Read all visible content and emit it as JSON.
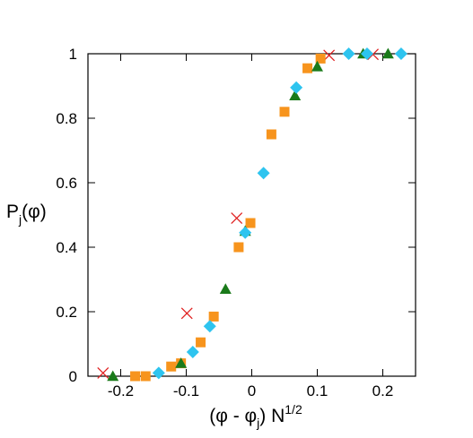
{
  "chart_data": {
    "type": "scatter",
    "xlabel": {
      "pre": "(φ - φ",
      "sub": "j",
      "mid": ") N",
      "sup": "1/2"
    },
    "ylabel": {
      "main": "P",
      "sub": "j",
      "rest": "(φ)"
    },
    "xlim": [
      -0.25,
      0.25
    ],
    "ylim": [
      0,
      1
    ],
    "xticks": [
      -0.2,
      -0.1,
      0,
      0.1,
      0.2
    ],
    "xtick_labels": [
      "-0.2",
      "-0.1",
      "0",
      "0.1",
      "0.2"
    ],
    "yticks": [
      0,
      0.2,
      0.4,
      0.6,
      0.8,
      1
    ],
    "ytick_labels": [
      "0",
      "0.2",
      "0.4",
      "0.6",
      "0.8",
      "1"
    ],
    "grid": false,
    "series": [
      {
        "marker": "x",
        "color": "#e02020",
        "points": [
          [
            -0.227,
            0.01
          ],
          [
            -0.099,
            0.195
          ],
          [
            -0.023,
            0.49
          ],
          [
            0.118,
            0.995
          ],
          [
            0.185,
            0.998
          ]
        ]
      },
      {
        "marker": "square",
        "color": "#f7941d",
        "points": [
          [
            -0.178,
            0.0
          ],
          [
            -0.162,
            0.0
          ],
          [
            -0.123,
            0.03
          ],
          [
            -0.108,
            0.04
          ],
          [
            -0.078,
            0.105
          ],
          [
            -0.058,
            0.185
          ],
          [
            -0.02,
            0.4
          ],
          [
            -0.002,
            0.475
          ],
          [
            0.03,
            0.75
          ],
          [
            0.05,
            0.82
          ],
          [
            0.085,
            0.955
          ],
          [
            0.105,
            0.985
          ]
        ]
      },
      {
        "marker": "triangle",
        "color": "#1a7a1a",
        "points": [
          [
            -0.212,
            0.0
          ],
          [
            -0.108,
            0.04
          ],
          [
            -0.04,
            0.27
          ],
          [
            -0.01,
            0.45
          ],
          [
            0.066,
            0.87
          ],
          [
            0.1,
            0.96
          ],
          [
            0.17,
            1.0
          ],
          [
            0.208,
            1.0
          ]
        ]
      },
      {
        "marker": "diamond",
        "color": "#2ec4ef",
        "points": [
          [
            -0.142,
            0.01
          ],
          [
            -0.09,
            0.075
          ],
          [
            -0.064,
            0.155
          ],
          [
            -0.01,
            0.445
          ],
          [
            0.018,
            0.63
          ],
          [
            0.068,
            0.895
          ],
          [
            0.148,
            1.0
          ],
          [
            0.176,
            1.0
          ],
          [
            0.228,
            1.0
          ]
        ]
      }
    ]
  }
}
